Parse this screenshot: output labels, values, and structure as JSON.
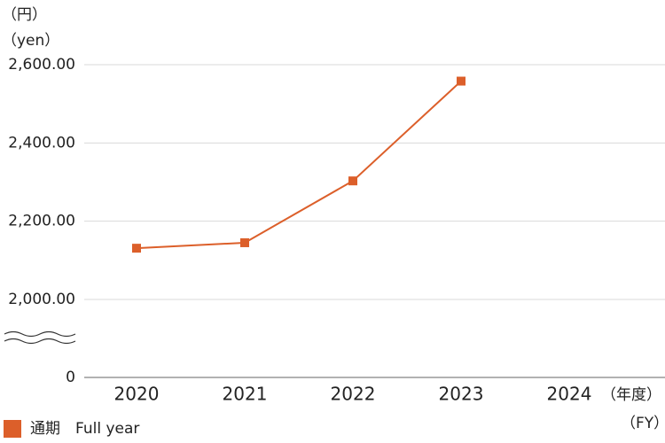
{
  "chart_data": {
    "type": "line",
    "y_unit_labels": [
      "（円）",
      "（yen）"
    ],
    "x_unit_labels": [
      "（年度）",
      "（FY）"
    ],
    "categories": [
      "2020",
      "2021",
      "2022",
      "2023",
      "2024"
    ],
    "series": [
      {
        "name": "通期　Full year",
        "color": "#dc5f2a",
        "values": [
          2131,
          2145,
          2303,
          2558,
          null
        ]
      }
    ],
    "ylim": [
      0,
      2600
    ],
    "axis_break": [
      0,
      2000
    ],
    "yticks": [
      0,
      {
        "value": 2000,
        "label": "2,000.00"
      },
      {
        "value": 2200,
        "label": "2,200.00"
      },
      {
        "value": 2400,
        "label": "2,400.00"
      },
      {
        "value": 2600,
        "label": "2,600.00"
      }
    ],
    "grid": true,
    "legend": "bottom-left"
  }
}
